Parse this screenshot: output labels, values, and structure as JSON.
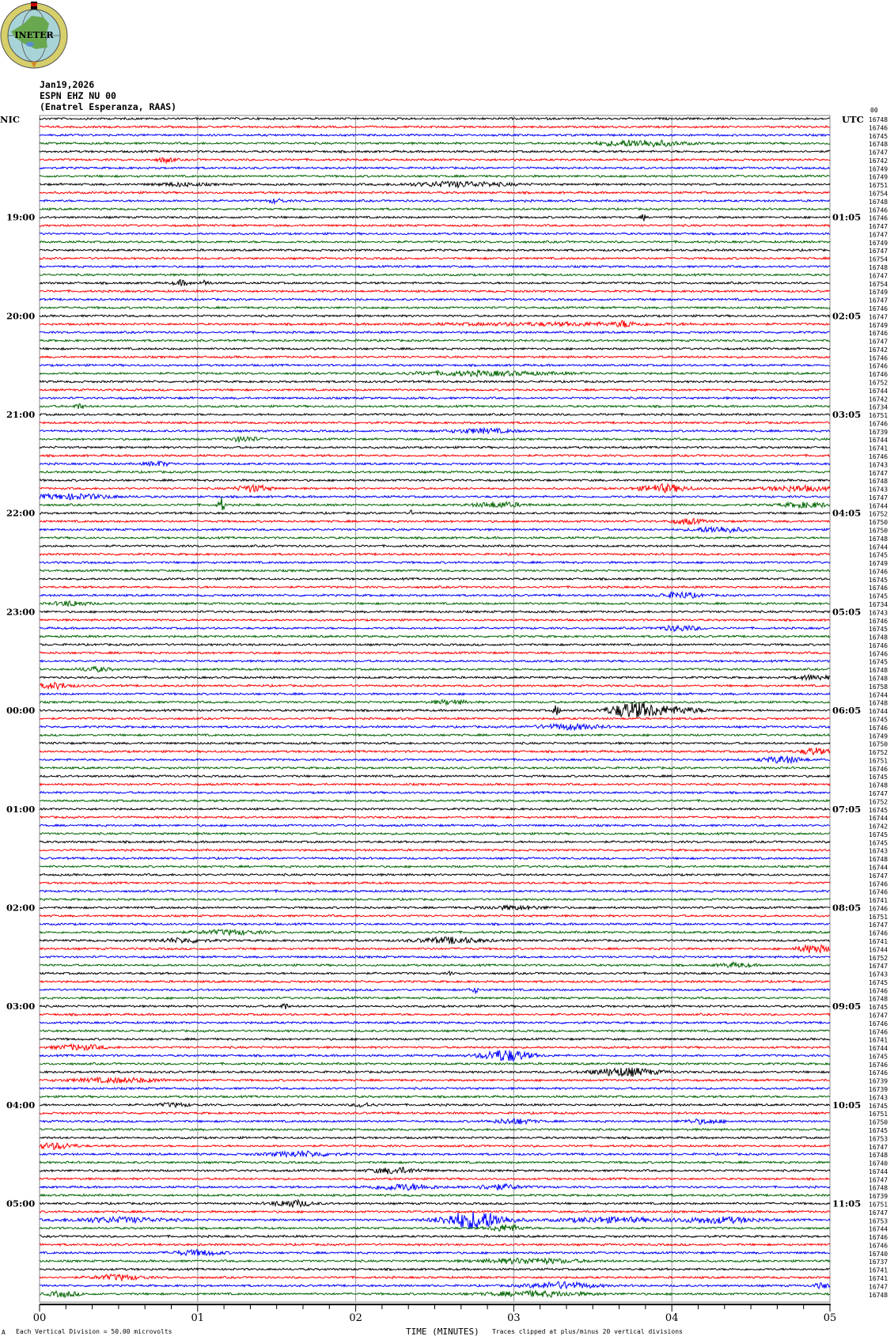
{
  "logo": {
    "text": "INETER",
    "colors": {
      "ring": "#d6cf6a",
      "globe": "#a8d4d8",
      "land": "#6aa84f"
    }
  },
  "header": {
    "date": "Jan19,2026",
    "station": "ESPN EHZ NU 00",
    "location": "(Enatrel Esperanza, RAAS)"
  },
  "chart_data": {
    "type": "line",
    "title": "",
    "xlabel": "TIME (MINUTES)",
    "x_ticks": [
      "00",
      "01",
      "02",
      "03",
      "04",
      "05"
    ],
    "xlim": [
      0,
      5
    ],
    "x_minor_tick_seconds": 10,
    "left_axis_title": "NIC",
    "right_axis_title": "UTC",
    "left_time_labels": [
      {
        "row": 12,
        "label": "19:00"
      },
      {
        "row": 24,
        "label": "20:00"
      },
      {
        "row": 36,
        "label": "21:00"
      },
      {
        "row": 48,
        "label": "22:00"
      },
      {
        "row": 60,
        "label": "23:00"
      },
      {
        "row": 72,
        "label": "00:00"
      },
      {
        "row": 84,
        "label": "01:00"
      },
      {
        "row": 96,
        "label": "02:00"
      },
      {
        "row": 108,
        "label": "03:00"
      },
      {
        "row": 120,
        "label": "04:00"
      },
      {
        "row": 132,
        "label": "05:00"
      }
    ],
    "right_time_labels": [
      {
        "row": 12,
        "label": "01:05"
      },
      {
        "row": 24,
        "label": "02:05"
      },
      {
        "row": 36,
        "label": "03:05"
      },
      {
        "row": 48,
        "label": "04:05"
      },
      {
        "row": 60,
        "label": "05:05"
      },
      {
        "row": 72,
        "label": "06:05"
      },
      {
        "row": 84,
        "label": "07:05"
      },
      {
        "row": 96,
        "label": "08:05"
      },
      {
        "row": 108,
        "label": "09:05"
      },
      {
        "row": 120,
        "label": "10:05"
      },
      {
        "row": 132,
        "label": "11:05"
      }
    ],
    "trace_colors": [
      "#000000",
      "#ff0000",
      "#0000ff",
      "#006400"
    ],
    "row_count": 144,
    "row_minutes": 5,
    "top_right_label": "00",
    "row_offsets": [
      16748,
      16746,
      16745,
      16748,
      16747,
      16742,
      16749,
      16749,
      16751,
      16754,
      16748,
      16746,
      16746,
      16747,
      16747,
      16749,
      16747,
      16754,
      16748,
      16747,
      16754,
      16749,
      16747,
      16746,
      16747,
      16749,
      16746,
      16747,
      16742,
      16746,
      16746,
      16746,
      16752,
      16744,
      16742,
      16734,
      16751,
      16746,
      16739,
      16744,
      16741,
      16746,
      16743,
      16747,
      16748,
      16743,
      16747,
      16744,
      16752,
      16750,
      16750,
      16748,
      16744,
      16745,
      16749,
      16746,
      16745,
      16746,
      16745,
      16734,
      16743,
      16746,
      16745,
      16748,
      16746,
      16746,
      16745,
      16748,
      16748,
      16758,
      16744,
      16748,
      16744,
      16745,
      16746,
      16749,
      16750,
      16752,
      16751,
      16746,
      16745,
      16748,
      16747,
      16752,
      16745,
      16744,
      16742,
      16745,
      16745,
      16743,
      16748,
      16744,
      16747,
      16746,
      16746,
      16741,
      16746,
      16751,
      16747,
      16746,
      16741,
      16744,
      16752,
      16747,
      16743,
      16745,
      16746,
      16748,
      16745,
      16747,
      16746,
      16746,
      16741,
      16744,
      16745,
      16746,
      16746,
      16739,
      16739,
      16743,
      16745,
      16751,
      16750,
      16745,
      16753,
      16747,
      16748,
      16740,
      16744,
      16747,
      16748,
      16739,
      16751,
      16747,
      16753,
      16744,
      16746,
      16746,
      16740,
      16737,
      16741,
      16741,
      16747,
      16748
    ],
    "events": [
      {
        "row": 3,
        "minute": 3.8,
        "amp": 4,
        "dur": 0.25
      },
      {
        "row": 5,
        "minute": 0.8,
        "amp": 3,
        "dur": 0.05
      },
      {
        "row": 8,
        "minute": 2.65,
        "amp": 3,
        "dur": 0.3
      },
      {
        "row": 8,
        "minute": 0.9,
        "amp": 2,
        "dur": 0.15
      },
      {
        "row": 10,
        "minute": 1.5,
        "amp": 2.5,
        "dur": 0.05
      },
      {
        "row": 12,
        "minute": 3.82,
        "amp": 5,
        "dur": 0.01
      },
      {
        "row": 20,
        "minute": 0.9,
        "amp": 3,
        "dur": 0.05
      },
      {
        "row": 20,
        "minute": 1.05,
        "amp": 3,
        "dur": 0.03
      },
      {
        "row": 25,
        "minute": 3.7,
        "amp": 3,
        "dur": 0.05
      },
      {
        "row": 25,
        "minute": 3.3,
        "amp": 1.5,
        "dur": 0.8
      },
      {
        "row": 31,
        "minute": 2.8,
        "amp": 2.5,
        "dur": 0.45
      },
      {
        "row": 35,
        "minute": 0.25,
        "amp": 3,
        "dur": 0.03
      },
      {
        "row": 38,
        "minute": 2.8,
        "amp": 2.5,
        "dur": 0.2
      },
      {
        "row": 39,
        "minute": 1.3,
        "amp": 3,
        "dur": 0.08
      },
      {
        "row": 42,
        "minute": 0.75,
        "amp": 2.5,
        "dur": 0.08
      },
      {
        "row": 45,
        "minute": 1.35,
        "amp": 4,
        "dur": 0.1
      },
      {
        "row": 45,
        "minute": 3.95,
        "amp": 4.5,
        "dur": 0.15
      },
      {
        "row": 45,
        "minute": 4.8,
        "amp": 3,
        "dur": 0.2
      },
      {
        "row": 46,
        "minute": 0.2,
        "amp": 3,
        "dur": 0.25
      },
      {
        "row": 47,
        "minute": 1.15,
        "amp": 9,
        "dur": 0.02
      },
      {
        "row": 47,
        "minute": 2.9,
        "amp": 3,
        "dur": 0.15
      },
      {
        "row": 47,
        "minute": 4.85,
        "amp": 3,
        "dur": 0.15
      },
      {
        "row": 48,
        "minute": 2.35,
        "amp": 3,
        "dur": 0.01
      },
      {
        "row": 49,
        "minute": 4.1,
        "amp": 3,
        "dur": 0.1
      },
      {
        "row": 50,
        "minute": 4.3,
        "amp": 3.5,
        "dur": 0.15
      },
      {
        "row": 58,
        "minute": 4.05,
        "amp": 3.5,
        "dur": 0.12
      },
      {
        "row": 59,
        "minute": 0.2,
        "amp": 3,
        "dur": 0.1
      },
      {
        "row": 62,
        "minute": 4.05,
        "amp": 3,
        "dur": 0.12
      },
      {
        "row": 67,
        "minute": 0.35,
        "amp": 2.5,
        "dur": 0.1
      },
      {
        "row": 68,
        "minute": 4.9,
        "amp": 3,
        "dur": 0.1
      },
      {
        "row": 69,
        "minute": 0.1,
        "amp": 3.5,
        "dur": 0.1
      },
      {
        "row": 71,
        "minute": 2.6,
        "amp": 2.5,
        "dur": 0.1
      },
      {
        "row": 72,
        "minute": 3.75,
        "amp": 9,
        "dur": 0.15
      },
      {
        "row": 72,
        "minute": 3.27,
        "amp": 6,
        "dur": 0.02
      },
      {
        "row": 72,
        "minute": 4.0,
        "amp": 4,
        "dur": 0.2
      },
      {
        "row": 74,
        "minute": 3.35,
        "amp": 3,
        "dur": 0.2
      },
      {
        "row": 77,
        "minute": 4.9,
        "amp": 4,
        "dur": 0.08
      },
      {
        "row": 78,
        "minute": 4.7,
        "amp": 4,
        "dur": 0.12
      },
      {
        "row": 96,
        "minute": 3.0,
        "amp": 2,
        "dur": 0.2
      },
      {
        "row": 99,
        "minute": 1.2,
        "amp": 2.5,
        "dur": 0.2
      },
      {
        "row": 100,
        "minute": 2.6,
        "amp": 3.5,
        "dur": 0.2
      },
      {
        "row": 100,
        "minute": 0.9,
        "amp": 2.5,
        "dur": 0.15
      },
      {
        "row": 101,
        "minute": 4.9,
        "amp": 5,
        "dur": 0.1
      },
      {
        "row": 103,
        "minute": 4.4,
        "amp": 2.5,
        "dur": 0.1
      },
      {
        "row": 104,
        "minute": 2.6,
        "amp": 2.5,
        "dur": 0.01
      },
      {
        "row": 106,
        "minute": 2.75,
        "amp": 3,
        "dur": 0.03
      },
      {
        "row": 108,
        "minute": 1.55,
        "amp": 4,
        "dur": 0.02
      },
      {
        "row": 113,
        "minute": 0.25,
        "amp": 3,
        "dur": 0.15
      },
      {
        "row": 114,
        "minute": 2.95,
        "amp": 7,
        "dur": 0.15
      },
      {
        "row": 116,
        "minute": 3.7,
        "amp": 5,
        "dur": 0.2
      },
      {
        "row": 117,
        "minute": 0.5,
        "amp": 2.5,
        "dur": 0.3
      },
      {
        "row": 120,
        "minute": 2.05,
        "amp": 2.5,
        "dur": 0.06
      },
      {
        "row": 120,
        "minute": 0.85,
        "amp": 2,
        "dur": 0.1
      },
      {
        "row": 122,
        "minute": 3.0,
        "amp": 3,
        "dur": 0.12
      },
      {
        "row": 122,
        "minute": 4.2,
        "amp": 2.5,
        "dur": 0.12
      },
      {
        "row": 125,
        "minute": 0.1,
        "amp": 3.5,
        "dur": 0.12
      },
      {
        "row": 126,
        "minute": 1.65,
        "amp": 3,
        "dur": 0.2
      },
      {
        "row": 128,
        "minute": 2.25,
        "amp": 3.5,
        "dur": 0.15
      },
      {
        "row": 130,
        "minute": 2.3,
        "amp": 3.5,
        "dur": 0.2
      },
      {
        "row": 130,
        "minute": 2.9,
        "amp": 3,
        "dur": 0.15
      },
      {
        "row": 132,
        "minute": 1.6,
        "amp": 4,
        "dur": 0.12
      },
      {
        "row": 134,
        "minute": 2.75,
        "amp": 11,
        "dur": 0.2
      },
      {
        "row": 134,
        "minute": 0.5,
        "amp": 3,
        "dur": 0.3
      },
      {
        "row": 134,
        "minute": 3.6,
        "amp": 3,
        "dur": 0.3
      },
      {
        "row": 134,
        "minute": 4.3,
        "amp": 3.5,
        "dur": 0.25
      },
      {
        "row": 135,
        "minute": 2.95,
        "amp": 4,
        "dur": 0.1
      },
      {
        "row": 138,
        "minute": 1.0,
        "amp": 3,
        "dur": 0.15
      },
      {
        "row": 139,
        "minute": 3.1,
        "amp": 3,
        "dur": 0.3
      },
      {
        "row": 141,
        "minute": 0.5,
        "amp": 3,
        "dur": 0.15
      },
      {
        "row": 142,
        "minute": 3.3,
        "amp": 4,
        "dur": 0.2
      },
      {
        "row": 142,
        "minute": 4.95,
        "amp": 3,
        "dur": 0.05
      },
      {
        "row": 143,
        "minute": 0.15,
        "amp": 3,
        "dur": 0.1
      },
      {
        "row": 143,
        "minute": 3.15,
        "amp": 3,
        "dur": 0.3
      }
    ]
  },
  "footer": {
    "scale_note": "Each Vertical Division =   50.00 microvolts",
    "clip_note": "Traces clipped at plus/minus 20 vertical divisions",
    "corner_mark": "A"
  }
}
